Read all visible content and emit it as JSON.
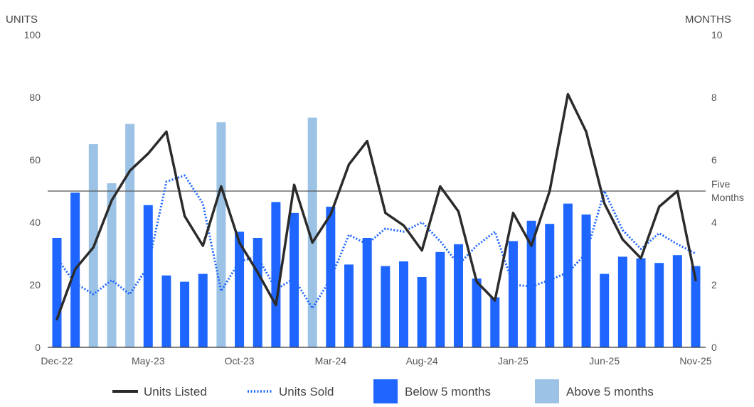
{
  "chart_data": {
    "type": "bar",
    "left_axis": {
      "title": "UNITS",
      "ylim": [
        0,
        100
      ],
      "ticks": [
        0,
        20,
        40,
        60,
        80,
        100
      ]
    },
    "right_axis": {
      "title": "MONTHS",
      "ylim": [
        0,
        10
      ],
      "ticks": [
        0,
        2,
        4,
        6,
        8,
        10
      ]
    },
    "x_tick_labels": [
      "Dec-22",
      "May-23",
      "Oct-23",
      "Mar-24",
      "Aug-24",
      "Jan-25",
      "Jun-25",
      "Nov-25"
    ],
    "categories": [
      "Dec-22",
      "Jan-23",
      "Feb-23",
      "Mar-23",
      "Apr-23",
      "May-23",
      "Jun-23",
      "Jul-23",
      "Aug-23",
      "Sep-23",
      "Oct-23",
      "Nov-23",
      "Dec-23",
      "Jan-24",
      "Feb-24",
      "Mar-24",
      "Apr-24",
      "May-24",
      "Jun-24",
      "Jul-24",
      "Aug-24",
      "Sep-24",
      "Oct-24",
      "Nov-24",
      "Dec-24",
      "Jan-25",
      "Feb-25",
      "Mar-25",
      "Apr-25",
      "May-25",
      "Jun-25",
      "Jul-25",
      "Aug-25",
      "Sep-25",
      "Oct-25",
      "Nov-25"
    ],
    "bar_series_values": [
      35,
      49.5,
      65,
      52.5,
      71.5,
      45.5,
      23,
      21,
      23.5,
      72,
      37,
      35,
      46.5,
      43,
      73.5,
      45,
      26.5,
      35,
      26,
      27.5,
      22.5,
      30.5,
      33,
      22,
      16,
      34,
      40.5,
      39.5,
      46,
      42.5,
      23.5,
      29,
      28.5,
      27,
      29.5,
      26
    ],
    "bar_above_five_months": [
      false,
      false,
      true,
      true,
      true,
      false,
      false,
      false,
      false,
      true,
      false,
      false,
      false,
      false,
      true,
      false,
      false,
      false,
      false,
      false,
      false,
      false,
      false,
      false,
      false,
      false,
      false,
      false,
      false,
      false,
      false,
      false,
      false,
      false,
      false,
      false
    ],
    "series": [
      {
        "name": "Units Listed",
        "style": "solid",
        "color": "#2b2b2b",
        "values": [
          9,
          25,
          32,
          47,
          56.5,
          62,
          69,
          42,
          32.5,
          51.5,
          33.5,
          24,
          13.5,
          52,
          33.5,
          42.5,
          58.5,
          66,
          43,
          39,
          31,
          51.5,
          43.5,
          21,
          15,
          43,
          32.5,
          50,
          81,
          69,
          46,
          34.5,
          28.5,
          45,
          50,
          21.5
        ]
      },
      {
        "name": "Units Sold",
        "style": "dotted",
        "color": "#1e66ff",
        "values": [
          28.5,
          20.5,
          17,
          21.5,
          17,
          26,
          53,
          55,
          46,
          18,
          27.5,
          29,
          18.5,
          22,
          12.5,
          22,
          36,
          33,
          38,
          37,
          40,
          34,
          26.5,
          32.5,
          37,
          20,
          19.5,
          21.5,
          24,
          30,
          50,
          37.5,
          31.5,
          36.5,
          33,
          30
        ]
      },
      {
        "name": "Below 5 months",
        "type": "bar",
        "color": "#1e66ff"
      },
      {
        "name": "Above 5 months",
        "type": "bar",
        "color": "#9cc3e6"
      }
    ],
    "reference_line": {
      "value_months": 5,
      "label_lines": [
        "Five",
        "Months"
      ],
      "color": "#555555"
    },
    "grid": false,
    "legend_position": "bottom-center"
  }
}
